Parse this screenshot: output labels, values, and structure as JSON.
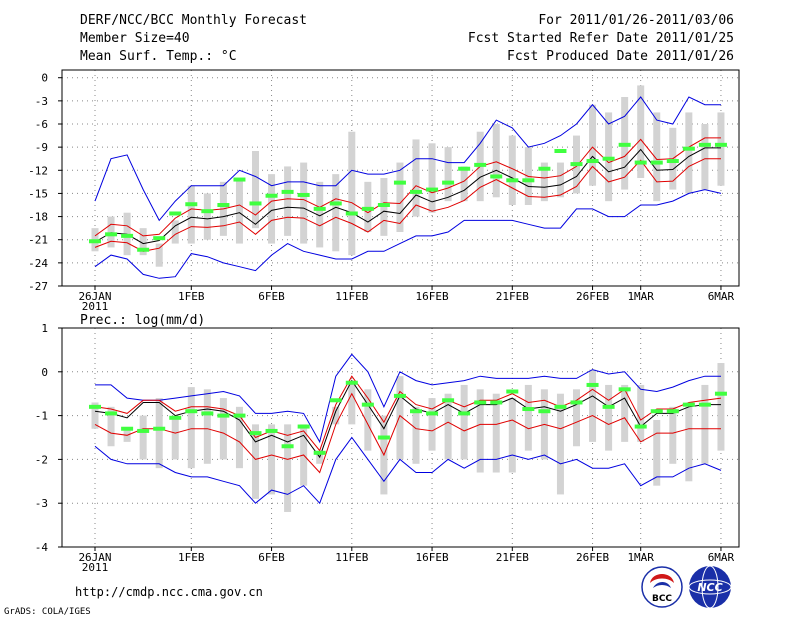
{
  "header": {
    "title": "DERF/NCC/BCC Monthly Forecast",
    "period": "For 2011/01/26-2011/03/06",
    "member_size": "Member Size=40",
    "fcst_started": "Fcst Started Refer Date 2011/01/25",
    "variable": "Mean Surf. Temp.: °C",
    "fcst_produced": "Fcst Produced Date 2011/01/26"
  },
  "footer": {
    "url": "http://cmdp.ncc.cma.gov.cn",
    "grads_credit": "GrADS: COLA/IGES",
    "logo_bcc_text": "BCC",
    "logo_ncc_text": "NCC"
  },
  "colors": {
    "box": "#d3d3d3",
    "ensemble_mean": "#40ff40",
    "median": "#000000",
    "inner_range": "#e00000",
    "outer_range": "#0000e0",
    "logo_red": "#d01818",
    "logo_blue": "#1a2fa8"
  },
  "chart_data": [
    {
      "type": "box",
      "title": "Mean Surf. Temp.: °C",
      "x_tick_labels": [
        "26JAN",
        "1FEB",
        "6FEB",
        "11FEB",
        "16FEB",
        "21FEB",
        "26FEB",
        "1MAR",
        "6MAR"
      ],
      "x_tick_day_index": [
        0,
        6,
        11,
        16,
        21,
        26,
        31,
        34,
        39
      ],
      "x_year_label": "2011",
      "ylim": [
        -27,
        1
      ],
      "y_ticks": [
        0,
        -3,
        -6,
        -9,
        -12,
        -15,
        -18,
        -21,
        -24,
        -27
      ],
      "y_tick_labels": [
        "0",
        "-3",
        "-6",
        "-9",
        "-12",
        "-15",
        "-18",
        "-21",
        "-24",
        "-27"
      ],
      "grid": true,
      "days": 40,
      "series": [
        {
          "name": "box_high",
          "values": [
            -19.5,
            -18,
            -17.5,
            -19.5,
            -21.5,
            -18.5,
            -14,
            -15,
            -13.5,
            -13,
            -9.5,
            -12.5,
            -11.5,
            -11,
            -13.5,
            -12.5,
            -7,
            -13.5,
            -13,
            -11,
            -8,
            -8.5,
            -9,
            -11.5,
            -7,
            -6,
            -7.5,
            -9,
            -11,
            -11,
            -7.5,
            -3.5,
            -4.5,
            -2.5,
            -1,
            -4.5,
            -6.5,
            -4.5,
            -6,
            -4.5
          ]
        },
        {
          "name": "box_low",
          "values": [
            -22.5,
            -22,
            -23,
            -23,
            -24.5,
            -21.5,
            -21.5,
            -21,
            -20.5,
            -21.5,
            -19.5,
            -21.5,
            -20.5,
            -21.5,
            -22,
            -22.5,
            -23,
            -20,
            -20.5,
            -20,
            -18,
            -17.5,
            -16,
            -16,
            -16,
            -15.5,
            -16.5,
            -16.5,
            -16,
            -15.5,
            -15,
            -14,
            -16,
            -14.5,
            -13,
            -16,
            -14.5,
            -15,
            -14.5,
            -14
          ]
        },
        {
          "name": "ensemble_mean",
          "values": [
            -21.2,
            -20.3,
            -20.5,
            -22.3,
            -20.8,
            -17.6,
            -16.4,
            -17.3,
            -16.5,
            -13.2,
            -16.3,
            -15.3,
            -14.8,
            -15.2,
            -17.0,
            -16.3,
            -17.6,
            -17.0,
            -16.5,
            -13.6,
            -14.8,
            -14.5,
            -13.6,
            -11.8,
            -11.3,
            -12.8,
            -13.3,
            -13.3,
            -11.8,
            -9.5,
            -11.2,
            -10.8,
            -10.5,
            -8.7,
            -11.0,
            -11.0,
            -10.8,
            -9.2,
            -8.7,
            -8.7
          ]
        },
        {
          "name": "median",
          "values": [
            -21.3,
            -20.1,
            -20.3,
            -21.5,
            -21.1,
            -19.2,
            -18.1,
            -18.3,
            -18.0,
            -17.5,
            -19.0,
            -17.2,
            -16.8,
            -16.9,
            -17.9,
            -16.8,
            -17.5,
            -18.7,
            -17.3,
            -17.6,
            -15.2,
            -16.1,
            -15.5,
            -14.6,
            -12.9,
            -12.0,
            -13.0,
            -14.1,
            -14.2,
            -13.9,
            -12.8,
            -10.2,
            -12.2,
            -11.6,
            -9.3,
            -12.0,
            -11.9,
            -10.2,
            -9.1,
            -9.1
          ]
        },
        {
          "name": "p_upper",
          "values": [
            -20.5,
            -19,
            -19.2,
            -20.5,
            -20.3,
            -18.2,
            -17,
            -17.2,
            -17,
            -16.5,
            -17.8,
            -16,
            -15.7,
            -15.8,
            -16.8,
            -15.7,
            -16.2,
            -17.5,
            -16.2,
            -16.3,
            -14,
            -14.9,
            -14.3,
            -13.4,
            -11.5,
            -10.9,
            -11.8,
            -12.8,
            -13,
            -12.7,
            -11.5,
            -9,
            -11,
            -10.2,
            -8,
            -10.6,
            -10.5,
            -9,
            -7.8,
            -7.8
          ]
        },
        {
          "name": "p_lower",
          "values": [
            -22,
            -21.2,
            -21.4,
            -22.5,
            -22.1,
            -20.3,
            -19.3,
            -19.4,
            -19.2,
            -18.7,
            -20.3,
            -18.5,
            -18.1,
            -18.2,
            -19.2,
            -18.1,
            -18.9,
            -20,
            -18.5,
            -18.9,
            -16.5,
            -17.3,
            -16.8,
            -15.9,
            -14.2,
            -13.2,
            -14.3,
            -15.4,
            -15.5,
            -15.2,
            -14.1,
            -11.5,
            -13.5,
            -12.9,
            -10.7,
            -13.5,
            -13.4,
            -11.5,
            -10.5,
            -10.5
          ]
        },
        {
          "name": "p_max",
          "values": [
            -16,
            -10.5,
            -10,
            -14.5,
            -18.5,
            -16,
            -14,
            -14,
            -14,
            -12,
            -12.8,
            -14,
            -13.5,
            -13.5,
            -14,
            -14,
            -12,
            -12.5,
            -12.5,
            -12,
            -10.5,
            -10.5,
            -11,
            -11,
            -8.5,
            -5.5,
            -6.5,
            -9,
            -8.5,
            -7.5,
            -6,
            -3.5,
            -6,
            -5,
            -2.5,
            -5.5,
            -6,
            -2.5,
            -3.5,
            -3.5
          ]
        },
        {
          "name": "p_min",
          "values": [
            -24.5,
            -23,
            -23.5,
            -25.5,
            -26,
            -25.8,
            -22.8,
            -23.2,
            -24,
            -24.5,
            -25,
            -23,
            -21.5,
            -22.5,
            -23,
            -23.5,
            -23.5,
            -22.5,
            -22.5,
            -21.5,
            -20.5,
            -20.5,
            -20,
            -18.5,
            -18.5,
            -18.5,
            -18.5,
            -19,
            -19.5,
            -19.5,
            -17,
            -17,
            -18,
            -18,
            -16.5,
            -16.5,
            -16,
            -15,
            -14.5,
            -15
          ]
        }
      ]
    },
    {
      "type": "box",
      "title": "Prec.: log(mm/d)",
      "x_tick_labels": [
        "26JAN",
        "1FEB",
        "6FEB",
        "11FEB",
        "16FEB",
        "21FEB",
        "26FEB",
        "1MAR",
        "6MAR"
      ],
      "x_tick_day_index": [
        0,
        6,
        11,
        16,
        21,
        26,
        31,
        34,
        39
      ],
      "x_year_label": "2011",
      "ylim": [
        -4,
        1
      ],
      "y_ticks": [
        1,
        0,
        -1,
        -2,
        -3,
        -4
      ],
      "y_tick_labels": [
        "1",
        "0",
        "-1",
        "-2",
        "-3",
        "-4"
      ],
      "grid": true,
      "days": 40,
      "series": [
        {
          "name": "box_high",
          "values": [
            -0.7,
            -0.8,
            -1.3,
            -1.0,
            -0.6,
            -1.0,
            -0.35,
            -0.4,
            -0.6,
            -0.8,
            -1.2,
            -1.2,
            -1.2,
            -1.2,
            -1.8,
            -0.8,
            -0.2,
            -0.4,
            -1.0,
            -0.1,
            -0.8,
            -0.6,
            -0.5,
            -0.3,
            -0.4,
            -0.5,
            -0.6,
            -0.3,
            -0.4,
            -0.5,
            -0.4,
            0.05,
            -0.3,
            -0.3,
            -0.3,
            -1.1,
            -0.8,
            -0.8,
            -0.3,
            0.2
          ]
        },
        {
          "name": "box_low",
          "values": [
            -1.3,
            -1.7,
            -1.6,
            -2.0,
            -2.2,
            -2.0,
            -2.2,
            -2.1,
            -2.0,
            -2.2,
            -2.9,
            -2.8,
            -3.2,
            -2.6,
            -2.1,
            -1.2,
            -1.2,
            -1.8,
            -2.8,
            -2.0,
            -2.1,
            -1.8,
            -2.0,
            -2.0,
            -2.3,
            -2.3,
            -2.3,
            -1.8,
            -2.0,
            -2.8,
            -1.7,
            -1.6,
            -1.8,
            -1.6,
            -1.6,
            -2.6,
            -2.1,
            -2.5,
            -2.1,
            -1.8
          ]
        },
        {
          "name": "ensemble_mean",
          "values": [
            -0.8,
            -0.95,
            -1.3,
            -1.35,
            -1.3,
            -1.05,
            -0.9,
            -0.95,
            -1.0,
            -1.0,
            -1.4,
            -1.35,
            -1.7,
            -1.25,
            -1.85,
            -0.65,
            -0.25,
            -0.75,
            -1.5,
            -0.55,
            -0.9,
            -0.95,
            -0.65,
            -0.95,
            -0.7,
            -0.7,
            -0.45,
            -0.85,
            -0.9,
            -0.8,
            -0.7,
            -0.3,
            -0.8,
            -0.4,
            -1.25,
            -0.9,
            -0.9,
            -0.75,
            -0.75,
            -0.5
          ]
        },
        {
          "name": "median",
          "values": [
            -0.9,
            -0.95,
            -1.05,
            -0.7,
            -0.7,
            -1.0,
            -0.9,
            -0.85,
            -0.9,
            -1.1,
            -1.6,
            -1.45,
            -1.6,
            -1.45,
            -1.95,
            -0.9,
            -0.2,
            -0.75,
            -1.3,
            -0.55,
            -0.85,
            -0.95,
            -0.75,
            -0.95,
            -0.75,
            -0.75,
            -0.6,
            -0.85,
            -0.8,
            -0.9,
            -0.75,
            -0.55,
            -0.8,
            -0.6,
            -1.25,
            -0.95,
            -0.95,
            -0.8,
            -0.75,
            -0.75
          ]
        },
        {
          "name": "p_upper",
          "values": [
            -0.8,
            -0.85,
            -0.95,
            -0.65,
            -0.65,
            -0.9,
            -0.8,
            -0.8,
            -0.85,
            -1.0,
            -1.5,
            -1.35,
            -1.45,
            -1.35,
            -1.8,
            -0.75,
            -0.1,
            -0.6,
            -1.15,
            -0.45,
            -0.75,
            -0.85,
            -0.65,
            -0.8,
            -0.65,
            -0.65,
            -0.5,
            -0.7,
            -0.65,
            -0.8,
            -0.65,
            -0.4,
            -0.65,
            -0.4,
            -1.1,
            -0.85,
            -0.85,
            -0.7,
            -0.65,
            -0.6
          ]
        },
        {
          "name": "p_lower",
          "values": [
            -1.2,
            -1.4,
            -1.45,
            -1.3,
            -1.3,
            -1.4,
            -1.3,
            -1.3,
            -1.4,
            -1.6,
            -2.0,
            -1.9,
            -2.0,
            -1.9,
            -2.3,
            -1.2,
            -0.5,
            -1.2,
            -1.9,
            -1.0,
            -1.3,
            -1.35,
            -1.15,
            -1.35,
            -1.2,
            -1.2,
            -1.1,
            -1.3,
            -1.2,
            -1.3,
            -1.15,
            -1.0,
            -1.2,
            -1.05,
            -1.6,
            -1.4,
            -1.4,
            -1.3,
            -1.3,
            -1.3
          ]
        },
        {
          "name": "p_max",
          "values": [
            -0.3,
            -0.3,
            -0.6,
            -0.65,
            -0.65,
            -0.6,
            -0.55,
            -0.5,
            -0.45,
            -0.55,
            -0.95,
            -0.95,
            -0.9,
            -0.95,
            -1.6,
            -0.1,
            0.4,
            0.0,
            -0.8,
            0.0,
            -0.2,
            -0.3,
            -0.25,
            -0.2,
            -0.1,
            -0.15,
            -0.15,
            -0.15,
            -0.1,
            -0.15,
            -0.15,
            0.05,
            -0.05,
            0.0,
            -0.4,
            -0.45,
            -0.35,
            -0.2,
            -0.1,
            -0.1
          ]
        },
        {
          "name": "p_min",
          "values": [
            -1.7,
            -2.0,
            -2.1,
            -2.1,
            -2.1,
            -2.3,
            -2.4,
            -2.4,
            -2.5,
            -2.6,
            -3.0,
            -2.7,
            -2.8,
            -2.6,
            -3.0,
            -2.0,
            -1.5,
            -2.0,
            -2.5,
            -2.0,
            -2.3,
            -2.3,
            -2.0,
            -2.2,
            -2.0,
            -2.0,
            -1.9,
            -2.0,
            -1.9,
            -2.1,
            -2.0,
            -2.2,
            -2.2,
            -2.1,
            -2.6,
            -2.4,
            -2.4,
            -2.2,
            -2.1,
            -2.25
          ]
        }
      ]
    }
  ]
}
